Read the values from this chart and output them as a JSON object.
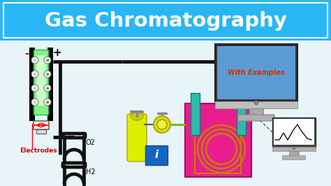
{
  "title": "Gas Chromatography",
  "title_bg": "#29b6f6",
  "title_color": "#ffffff",
  "diagram_bg": "#e8f4f8",
  "with_examples_text": "With Examples",
  "with_examples_color": "#cc3300",
  "electrodes_label": "Electrodes",
  "electrodes_color": "#cc0000",
  "o2_label": "O2",
  "h2_label": "H2",
  "minus_label": "-",
  "plus_label": "+",
  "teal_color": "#2bbbad",
  "pink_color": "#e91e8c",
  "yellow_cylinder": "#ddee00",
  "blue_box": "#1565c0",
  "green_line": "#66bb00",
  "monitor_screen_bg": "#5b9bd5",
  "monitor_body": "#cccccc",
  "monitor_dark": "#444444",
  "small_monitor_bg": "#cccccc",
  "pipe_color": "#111111",
  "coil_color": "#c08000"
}
